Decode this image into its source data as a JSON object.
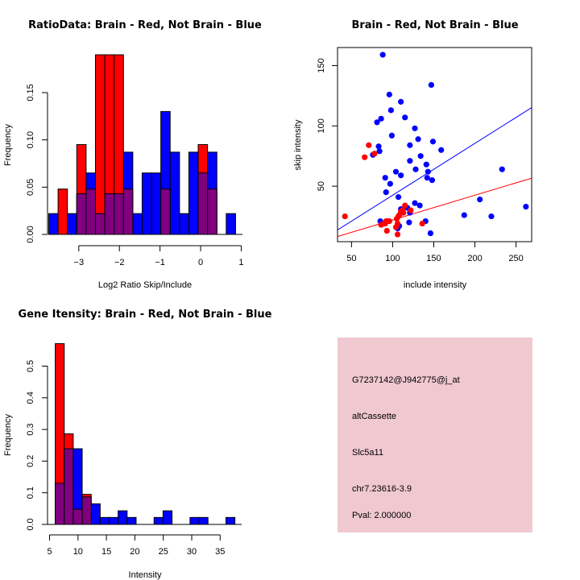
{
  "colors": {
    "brain": "#ff0000",
    "not_brain": "#0000ff",
    "overlap": "#800080",
    "info_panel": "#f0c8d0",
    "pval_text": "#8b0000"
  },
  "info_panel": {
    "probe_id": "G7237142@J942775@j_at",
    "event_type": "altCassette",
    "gene": "Slc5a11",
    "location": "chr7.23616-3.9",
    "pval": "Pval: 2.000000"
  },
  "chart_data": [
    {
      "id": "ratio-hist",
      "type": "bar",
      "title": "RatioData: Brain - Red, Not Brain - Blue",
      "xlabel": "Log2 Ratio Skip/Include",
      "ylabel": "Frequency",
      "xlim": [
        -3.75,
        1.05
      ],
      "ylim": [
        0,
        0.19
      ],
      "xticks": [
        -3,
        -2,
        -1,
        0,
        1
      ],
      "xtick_labels": [
        "-3",
        "-2",
        "-1",
        "0",
        "1"
      ],
      "yticks": [
        0.0,
        0.05,
        0.1,
        0.15
      ],
      "ytick_labels": [
        "0.00",
        "0.05",
        "0.10",
        "0.15"
      ],
      "bin_start": -3.74,
      "bin_width": 0.23,
      "series": [
        {
          "name": "Not Brain",
          "color": "blue",
          "values": [
            0.022,
            0,
            0.022,
            0.043,
            0.065,
            0.022,
            0.043,
            0.043,
            0.087,
            0.022,
            0.065,
            0.065,
            0.13,
            0.087,
            0.022,
            0.087,
            0.065,
            0.087,
            0,
            0.022
          ]
        },
        {
          "name": "Brain",
          "color": "red",
          "values": [
            0,
            0.048,
            0,
            0.095,
            0.048,
            0.19,
            0.19,
            0.19,
            0.048,
            0,
            0,
            0,
            0.048,
            0,
            0,
            0,
            0.095,
            0.048,
            0,
            0
          ]
        }
      ]
    },
    {
      "id": "scatter",
      "type": "scatter",
      "title": "Brain - Red, Not Brain - Blue",
      "xlabel": "include intensity",
      "ylabel": "skip intensity",
      "xlim": [
        33,
        269
      ],
      "ylim": [
        4,
        165
      ],
      "xticks": [
        50,
        100,
        150,
        200,
        250
      ],
      "xtick_labels": [
        "50",
        "100",
        "150",
        "200",
        "250"
      ],
      "yticks": [
        50,
        100,
        150
      ],
      "ytick_labels": [
        "50",
        "100",
        "150"
      ],
      "series": [
        {
          "name": "Not Brain",
          "color": "blue",
          "points": [
            [
              88,
              159
            ],
            [
              147,
              134
            ],
            [
              96,
              126
            ],
            [
              98,
              113
            ],
            [
              110,
              120
            ],
            [
              115,
              107
            ],
            [
              81,
              103
            ],
            [
              86,
              106
            ],
            [
              99,
              92
            ],
            [
              127,
              98
            ],
            [
              131,
              89
            ],
            [
              149,
              87
            ],
            [
              159,
              80
            ],
            [
              83,
              83
            ],
            [
              84,
              79
            ],
            [
              76,
              76
            ],
            [
              121,
              84
            ],
            [
              134,
              75
            ],
            [
              121,
              71
            ],
            [
              141,
              68
            ],
            [
              128,
              64
            ],
            [
              143,
              62
            ],
            [
              104,
              62
            ],
            [
              91,
              57
            ],
            [
              110,
              59
            ],
            [
              97,
              52
            ],
            [
              142,
              57
            ],
            [
              148,
              55
            ],
            [
              92,
              45
            ],
            [
              107,
              41
            ],
            [
              127,
              36
            ],
            [
              110,
              31
            ],
            [
              118,
              32
            ],
            [
              133,
              34
            ],
            [
              121,
              28
            ],
            [
              85,
              21
            ],
            [
              120,
              20
            ],
            [
              140,
              21
            ],
            [
              106,
              15
            ],
            [
              146,
              11
            ],
            [
              187,
              26
            ],
            [
              206,
              39
            ],
            [
              220,
              25
            ],
            [
              233,
              64
            ],
            [
              262,
              33
            ],
            [
              108,
              17
            ]
          ],
          "fit": {
            "intercept": -0.5,
            "slope": 0.43
          }
        },
        {
          "name": "Brain",
          "color": "red",
          "points": [
            [
              42,
              25
            ],
            [
              71,
              84
            ],
            [
              66,
              74
            ],
            [
              78,
              77
            ],
            [
              86,
              18
            ],
            [
              89,
              19
            ],
            [
              92,
              21
            ],
            [
              94,
              21
            ],
            [
              96,
              21
            ],
            [
              91,
              19
            ],
            [
              93,
              13
            ],
            [
              104,
              16
            ],
            [
              106,
              19
            ],
            [
              105,
              23
            ],
            [
              107,
              25
            ],
            [
              108,
              26
            ],
            [
              110,
              29
            ],
            [
              112,
              30
            ],
            [
              115,
              34
            ],
            [
              122,
              30
            ],
            [
              136,
              19
            ],
            [
              106,
              10
            ],
            [
              113,
              28
            ]
          ],
          "fit": {
            "intercept": 1.5,
            "slope": 0.205
          }
        }
      ]
    },
    {
      "id": "intensity-hist",
      "type": "bar",
      "title": "Gene Itensity: Brain - Red, Not Brain - Blue",
      "xlabel": "Intensity",
      "ylabel": "Frequency",
      "xlim": [
        4.5,
        38.5
      ],
      "ylim": [
        0,
        0.57
      ],
      "xticks": [
        5,
        10,
        15,
        20,
        25,
        30,
        35
      ],
      "xtick_labels": [
        "5",
        "10",
        "15",
        "20",
        "25",
        "30",
        "35"
      ],
      "yticks": [
        0.0,
        0.1,
        0.2,
        0.3,
        0.4,
        0.5
      ],
      "ytick_labels": [
        "0.0",
        "0.1",
        "0.2",
        "0.3",
        "0.4",
        "0.5"
      ],
      "bin_start": 6.0,
      "bin_width": 1.58,
      "series": [
        {
          "name": "Not Brain",
          "color": "blue",
          "values": [
            0.13,
            0.239,
            0.239,
            0.087,
            0.065,
            0.022,
            0.022,
            0.043,
            0.022,
            0,
            0,
            0.022,
            0.043,
            0,
            0,
            0.022,
            0.022,
            0,
            0,
            0.022
          ]
        },
        {
          "name": "Brain",
          "color": "red",
          "values": [
            0.571,
            0.286,
            0.048,
            0.095,
            0,
            0,
            0,
            0,
            0,
            0,
            0,
            0,
            0,
            0,
            0,
            0,
            0,
            0,
            0,
            0
          ]
        }
      ]
    }
  ]
}
